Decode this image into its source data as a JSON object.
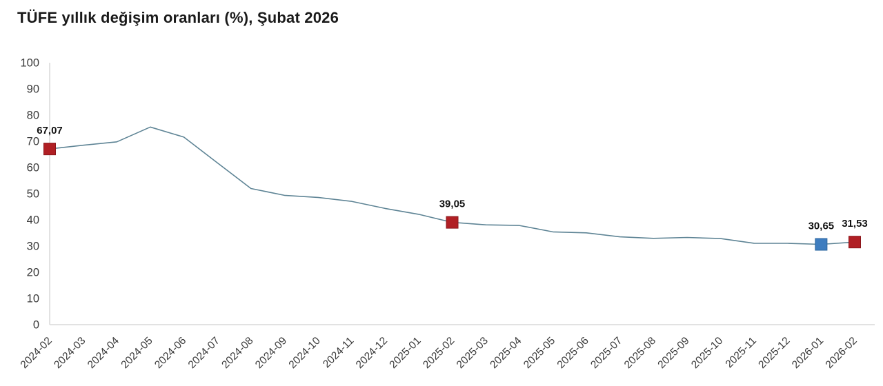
{
  "header": {
    "title": "TÜFE yıllık değişim oranları (%), Şubat 2026"
  },
  "chart_data": {
    "type": "line",
    "title": "TÜFE yıllık değişim oranları (%), Şubat 2026",
    "categories": [
      "2024-02",
      "2024-03",
      "2024-04",
      "2024-05",
      "2024-06",
      "2024-07",
      "2024-08",
      "2024-09",
      "2024-10",
      "2024-11",
      "2024-12",
      "2025-01",
      "2025-02",
      "2025-03",
      "2025-04",
      "2025-05",
      "2025-06",
      "2025-07",
      "2025-08",
      "2025-09",
      "2025-10",
      "2025-11",
      "2025-12",
      "2026-01",
      "2026-02"
    ],
    "values": [
      67.07,
      68.5,
      69.8,
      75.45,
      71.6,
      61.78,
      51.97,
      49.38,
      48.58,
      47.09,
      44.38,
      42.12,
      39.05,
      38.1,
      37.86,
      35.41,
      35.05,
      33.52,
      32.95,
      33.29,
      32.87,
      31.07,
      31.06,
      30.65,
      31.53
    ],
    "xlabel": "",
    "ylabel": "",
    "ylim": [
      0,
      100
    ],
    "ytick_step": 10,
    "grid": false,
    "legend": "none",
    "line_color": "#5e8495",
    "axis_color": "#d9d9d9",
    "tick_label_color": "#3a3a3a",
    "data_label_color": "#111111",
    "highlighted_points": [
      {
        "category": "2024-02",
        "index": 0,
        "label": "67,07",
        "fill": "#b01f24",
        "border": "#8a161b"
      },
      {
        "category": "2025-02",
        "index": 12,
        "label": "39,05",
        "fill": "#b01f24",
        "border": "#8a161b"
      },
      {
        "category": "2026-01",
        "index": 23,
        "label": "30,65",
        "fill": "#3e7dbf",
        "border": "#2b669f"
      },
      {
        "category": "2026-02",
        "index": 24,
        "label": "31,53",
        "fill": "#b01f24",
        "border": "#8a161b"
      }
    ]
  }
}
